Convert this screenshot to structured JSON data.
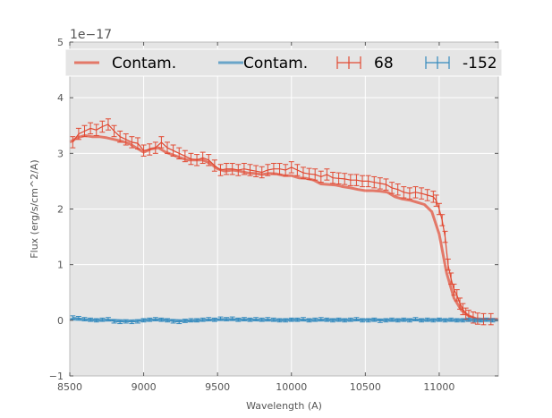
{
  "chart_data": {
    "type": "line",
    "title": "",
    "xlabel": "Wavelength (A)",
    "ylabel": "Flux (erg/s/cm^2/A)",
    "y_offset_label": "1e−17",
    "xlim": [
      8500,
      11400
    ],
    "ylim": [
      -1,
      5
    ],
    "xticks": [
      8500,
      9000,
      9500,
      10000,
      10500,
      11000
    ],
    "yticks": [
      -1,
      0,
      1,
      2,
      3,
      4,
      5
    ],
    "ytick_labels": [
      "−1",
      "0",
      "1",
      "2",
      "3",
      "4",
      "5"
    ],
    "grid": true,
    "legend": "top, spanning width, 4 columns",
    "colors": {
      "red": "#E24A33",
      "blue": "#348ABD",
      "background": "#E5E5E5"
    },
    "series": [
      {
        "name": "Contam.",
        "kind": "line",
        "color": "#E24A33",
        "x": [
          8500,
          8550,
          8600,
          8650,
          8700,
          8750,
          8800,
          8850,
          8900,
          8950,
          9000,
          9050,
          9100,
          9150,
          9200,
          9250,
          9300,
          9350,
          9400,
          9450,
          9500,
          9550,
          9600,
          9650,
          9700,
          9750,
          9800,
          9850,
          9900,
          9950,
          10000,
          10050,
          10100,
          10150,
          10200,
          10250,
          10300,
          10350,
          10400,
          10450,
          10500,
          10550,
          10600,
          10650,
          10700,
          10750,
          10800,
          10850,
          10900,
          10950,
          11000,
          11050,
          11100,
          11150,
          11200,
          11250,
          11300,
          11350,
          11400
        ],
        "y": [
          3.2,
          3.28,
          3.32,
          3.3,
          3.3,
          3.28,
          3.25,
          3.22,
          3.18,
          3.1,
          3.02,
          3.08,
          3.1,
          3.02,
          2.97,
          2.92,
          2.88,
          2.88,
          2.88,
          2.82,
          2.72,
          2.68,
          2.7,
          2.68,
          2.65,
          2.64,
          2.62,
          2.64,
          2.63,
          2.6,
          2.6,
          2.56,
          2.55,
          2.52,
          2.45,
          2.44,
          2.43,
          2.4,
          2.38,
          2.35,
          2.33,
          2.33,
          2.32,
          2.3,
          2.22,
          2.18,
          2.16,
          2.12,
          2.08,
          1.95,
          1.55,
          0.85,
          0.4,
          0.18,
          0.08,
          0.03,
          0.02,
          0.02,
          0.02
        ]
      },
      {
        "name": "Contam.",
        "kind": "line",
        "color": "#348ABD",
        "x": [
          8500,
          8600,
          8700,
          8800,
          8900,
          9000,
          9100,
          9200,
          9300,
          9400,
          9500,
          9600,
          9700,
          9800,
          9900,
          10000,
          10100,
          10200,
          10300,
          10400,
          10500,
          10600,
          10700,
          10800,
          10900,
          11000,
          11100,
          11200,
          11300,
          11400
        ],
        "y": [
          0.02,
          0.01,
          0.0,
          0.0,
          -0.01,
          0.0,
          0.01,
          0.0,
          -0.01,
          0.0,
          0.01,
          0.01,
          0.01,
          0.0,
          0.0,
          0.01,
          0.0,
          0.0,
          0.01,
          0.0,
          0.01,
          0.01,
          0.0,
          0.01,
          0.0,
          0.01,
          0.0,
          0.01,
          0.0,
          0.0
        ]
      },
      {
        "name": "68",
        "kind": "errorbar",
        "color": "#E24A33",
        "x": [
          8520,
          8560,
          8600,
          8640,
          8680,
          8720,
          8760,
          8800,
          8840,
          8880,
          8920,
          8960,
          9000,
          9040,
          9080,
          9120,
          9160,
          9200,
          9240,
          9280,
          9320,
          9360,
          9400,
          9440,
          9480,
          9520,
          9560,
          9600,
          9640,
          9680,
          9720,
          9760,
          9800,
          9840,
          9880,
          9920,
          9960,
          10000,
          10040,
          10080,
          10120,
          10160,
          10200,
          10240,
          10280,
          10320,
          10360,
          10400,
          10440,
          10480,
          10520,
          10560,
          10600,
          10640,
          10680,
          10720,
          10760,
          10800,
          10840,
          10880,
          10920,
          10960,
          10980,
          11000,
          11020,
          11040,
          11060,
          11080,
          11100,
          11120,
          11140,
          11160,
          11180,
          11200,
          11230,
          11260,
          11300,
          11350
        ],
        "y": [
          3.2,
          3.35,
          3.4,
          3.45,
          3.42,
          3.48,
          3.52,
          3.4,
          3.3,
          3.25,
          3.2,
          3.18,
          3.05,
          3.07,
          3.1,
          3.2,
          3.1,
          3.05,
          3.0,
          2.95,
          2.9,
          2.88,
          2.92,
          2.88,
          2.78,
          2.7,
          2.72,
          2.72,
          2.7,
          2.72,
          2.7,
          2.68,
          2.66,
          2.7,
          2.72,
          2.72,
          2.7,
          2.75,
          2.7,
          2.65,
          2.63,
          2.62,
          2.58,
          2.62,
          2.56,
          2.55,
          2.54,
          2.52,
          2.52,
          2.5,
          2.5,
          2.48,
          2.46,
          2.44,
          2.38,
          2.35,
          2.3,
          2.28,
          2.3,
          2.28,
          2.25,
          2.22,
          2.15,
          2.0,
          1.8,
          1.5,
          1.0,
          0.75,
          0.55,
          0.45,
          0.3,
          0.2,
          0.12,
          0.08,
          0.05,
          0.03,
          0.02,
          0.02
        ],
        "yerr": 0.1
      },
      {
        "name": "-152",
        "kind": "errorbar",
        "color": "#348ABD",
        "x": [
          8520,
          8560,
          8600,
          8640,
          8680,
          8720,
          8760,
          8800,
          8840,
          8880,
          8920,
          8960,
          9000,
          9040,
          9080,
          9120,
          9160,
          9200,
          9240,
          9280,
          9320,
          9360,
          9400,
          9440,
          9480,
          9520,
          9560,
          9600,
          9640,
          9680,
          9720,
          9760,
          9800,
          9840,
          9880,
          9920,
          9960,
          10000,
          10040,
          10080,
          10120,
          10160,
          10200,
          10240,
          10280,
          10320,
          10360,
          10400,
          10440,
          10480,
          10520,
          10560,
          10600,
          10640,
          10680,
          10720,
          10760,
          10800,
          10840,
          10880,
          10920,
          10960,
          11000,
          11040,
          11080,
          11120,
          11160,
          11200,
          11240,
          11280,
          11320,
          11360
        ],
        "y": [
          0.05,
          0.04,
          0.02,
          0.01,
          0.0,
          0.01,
          0.02,
          -0.02,
          -0.03,
          -0.02,
          -0.03,
          -0.02,
          0.0,
          0.01,
          0.02,
          0.01,
          0.0,
          -0.02,
          -0.03,
          -0.01,
          0.0,
          0.0,
          0.01,
          0.02,
          0.01,
          0.03,
          0.02,
          0.03,
          0.01,
          0.02,
          0.01,
          0.02,
          0.01,
          0.02,
          0.01,
          0.0,
          0.0,
          0.01,
          0.01,
          0.02,
          0.0,
          0.01,
          0.02,
          0.01,
          0.0,
          0.01,
          0.0,
          0.01,
          0.02,
          0.0,
          0.0,
          0.01,
          -0.01,
          0.0,
          0.01,
          0.0,
          0.01,
          0.0,
          0.02,
          0.0,
          0.01,
          0.0,
          0.01,
          0.0,
          0.01,
          0.0,
          0.0,
          0.01,
          0.0,
          0.0,
          0.01,
          0.0
        ],
        "yerr": 0.03
      }
    ]
  }
}
